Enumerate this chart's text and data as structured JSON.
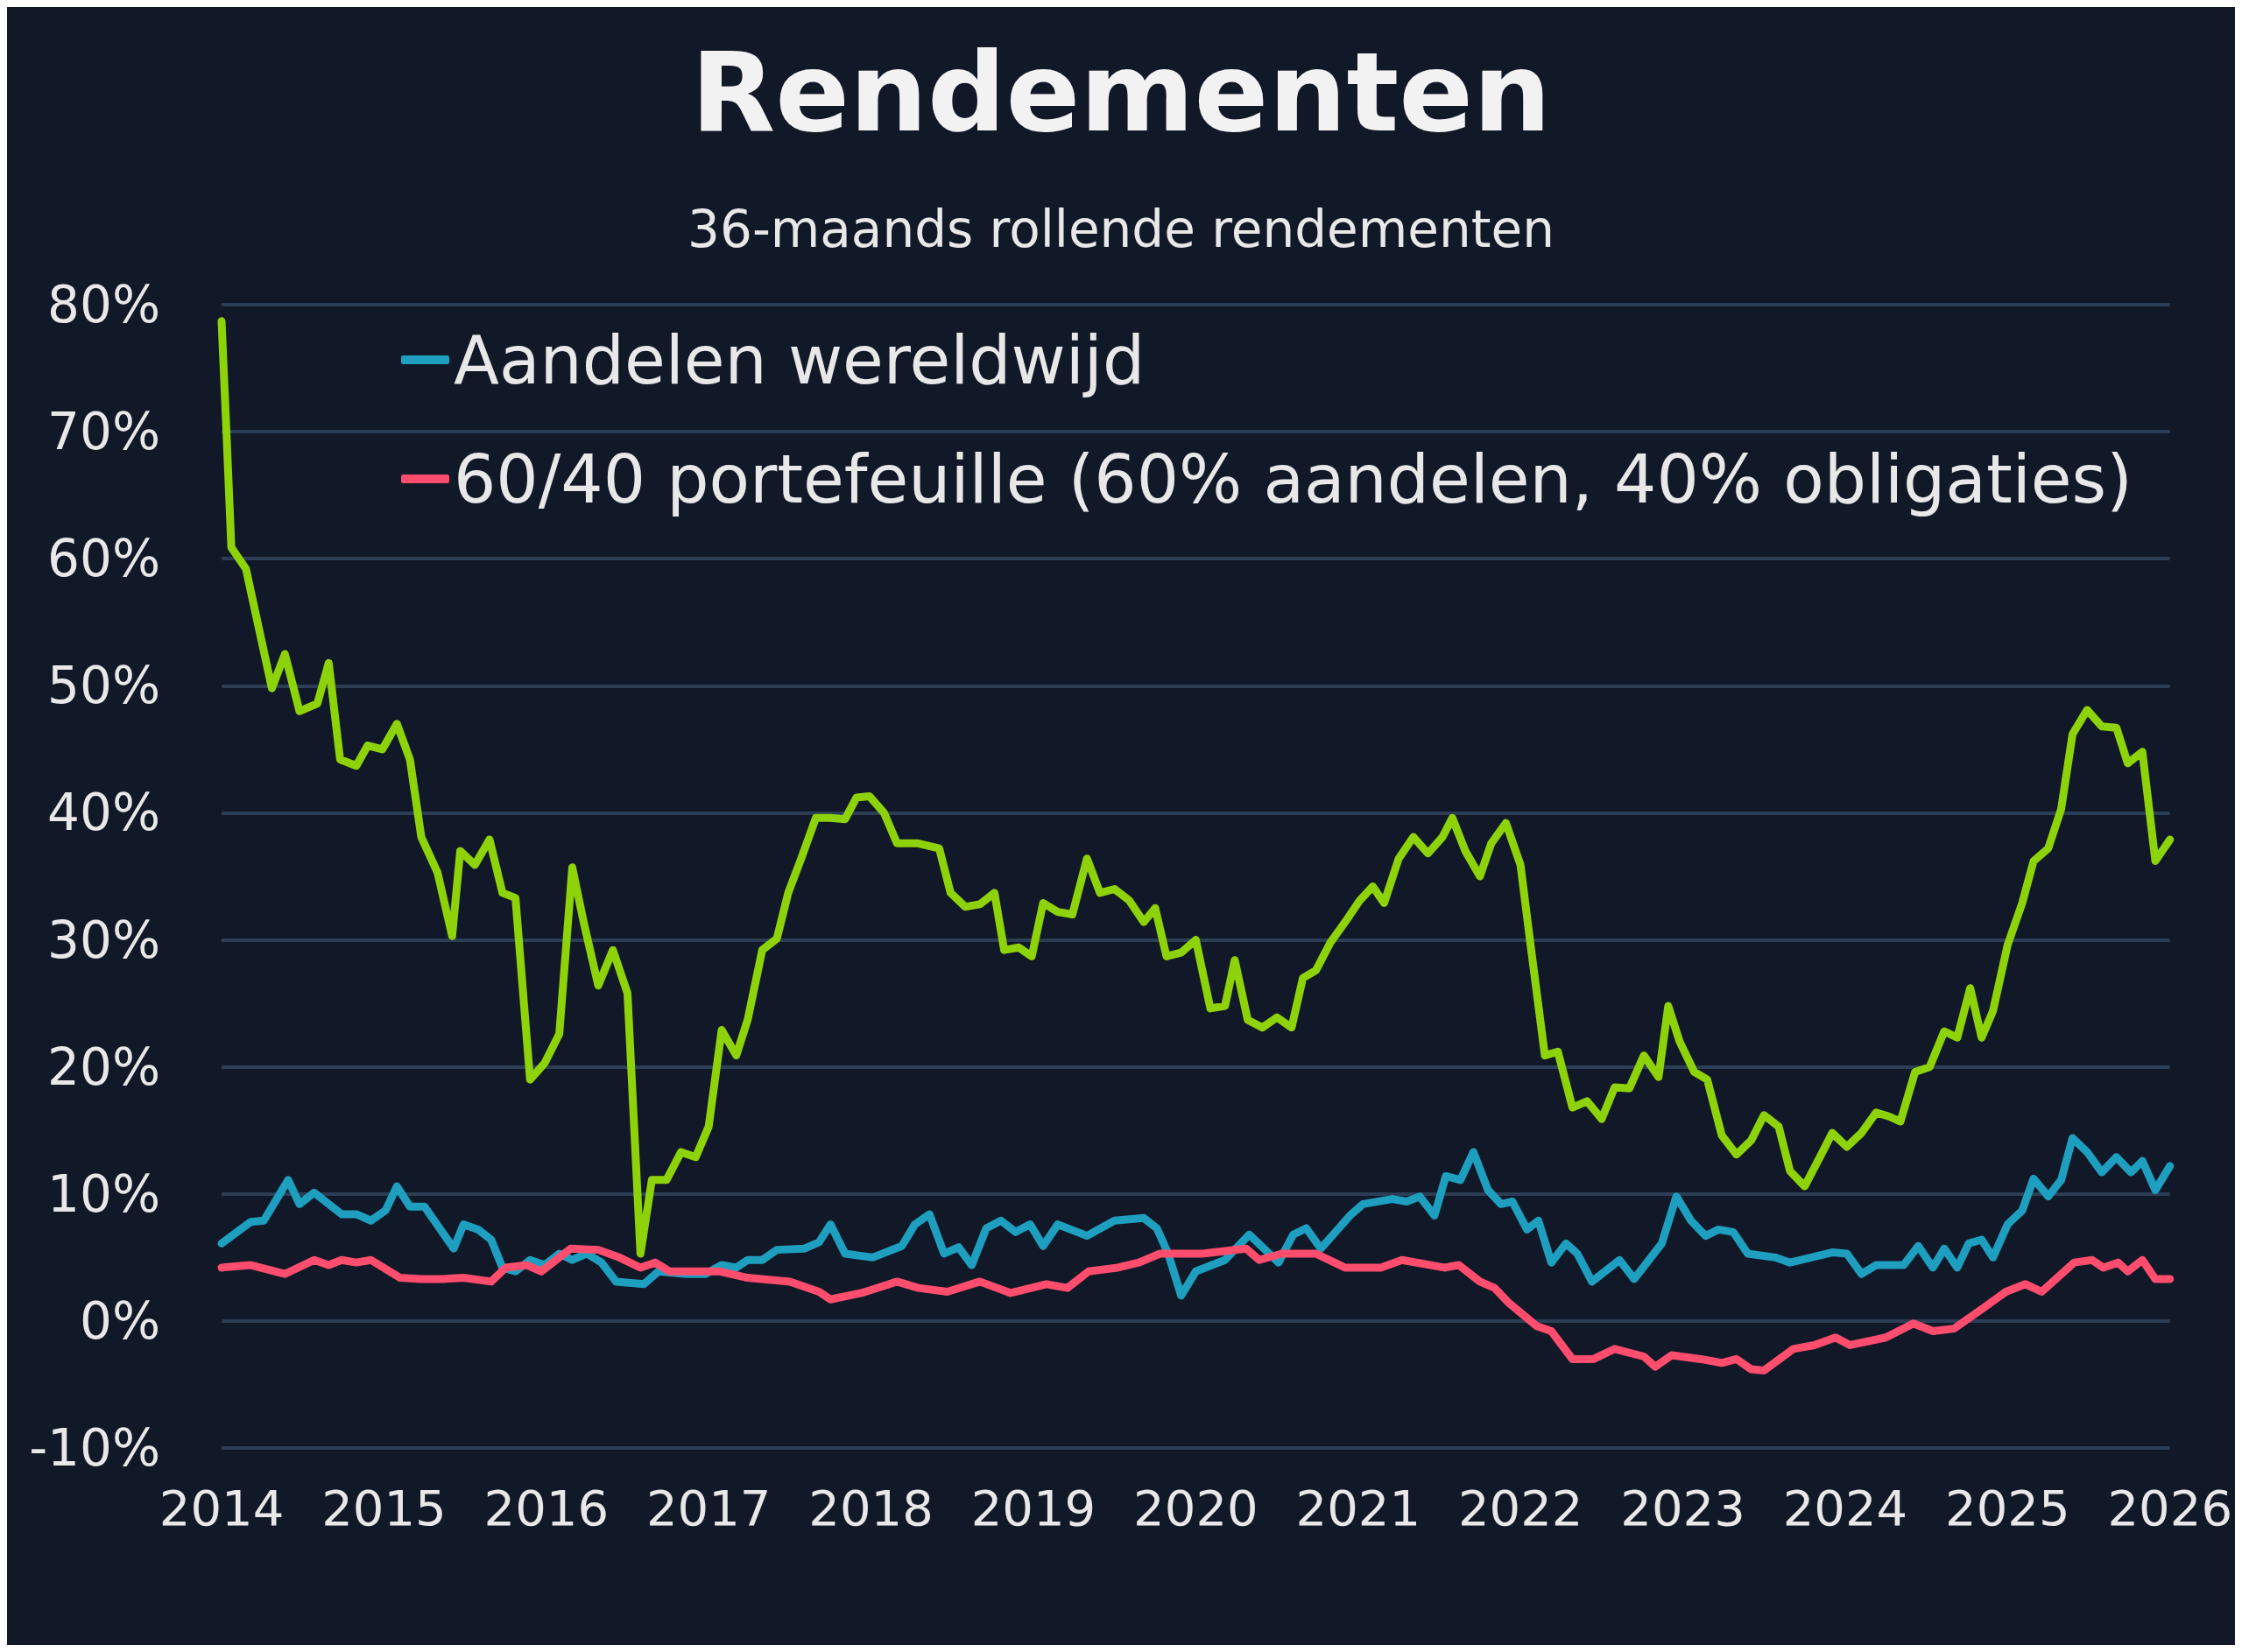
{
  "chart_data": {
    "type": "line",
    "title": "Rendementen",
    "subtitle": "36-maands rollende rendementen",
    "xlim": [
      2014,
      2026
    ],
    "xticks": [
      2014,
      2015,
      2016,
      2017,
      2018,
      2019,
      2020,
      2021,
      2022,
      2023,
      2024,
      2025,
      2026
    ],
    "ylim": [
      -10,
      80
    ],
    "yticks": [
      {
        "value": -10,
        "label": "-10%"
      },
      {
        "value": 0,
        "label": "0%"
      },
      {
        "value": 10,
        "label": "10%"
      },
      {
        "value": 20,
        "label": "20%"
      },
      {
        "value": 30,
        "label": "30%"
      },
      {
        "value": 40,
        "label": "40%"
      },
      {
        "value": 50,
        "label": "50%"
      },
      {
        "value": 60,
        "label": "60%"
      },
      {
        "value": 70,
        "label": "70%"
      },
      {
        "value": 80,
        "label": "80%"
      }
    ],
    "grid": "y",
    "legend": "top left",
    "marker": "none",
    "line_style": "solid",
    "series": [
      {
        "color": "#8ed30a",
        "x": [
          2014,
          2014.03,
          2014.06,
          2014.15,
          2014.31,
          2014.39,
          2014.48,
          2014.59,
          2014.66,
          2014.73,
          2014.83,
          2014.9,
          2014.99,
          2015.08,
          2015.16,
          2015.23,
          2015.33,
          2015.42,
          2015.47,
          2015.56,
          2015.65,
          2015.73,
          2015.81,
          2015.9,
          2015.99,
          2016.08,
          2016.16,
          2016.23,
          2016.32,
          2016.41,
          2016.5,
          2016.58,
          2016.65,
          2016.74,
          2016.83,
          2016.92,
          2017,
          2017.08,
          2017.17,
          2017.24,
          2017.33,
          2017.42,
          2017.49,
          2017.57,
          2017.66,
          2017.75,
          2017.84,
          2017.91,
          2017.99,
          2018.08,
          2018.16,
          2018.29,
          2018.42,
          2018.49,
          2018.58,
          2018.67,
          2018.76,
          2018.82,
          2018.91,
          2018.99,
          2019.06,
          2019.15,
          2019.24,
          2019.33,
          2019.41,
          2019.5,
          2019.59,
          2019.68,
          2019.75,
          2019.82,
          2019.91,
          2020,
          2020.09,
          2020.18,
          2020.24,
          2020.32,
          2020.41,
          2020.5,
          2020.59,
          2020.66,
          2020.74,
          2020.83,
          2020.92,
          2021.01,
          2021.09,
          2021.16,
          2021.25,
          2021.34,
          2021.43,
          2021.52,
          2021.58,
          2021.66,
          2021.75,
          2021.82,
          2021.91,
          2022,
          2022.06,
          2022.15,
          2022.23,
          2022.32,
          2022.41,
          2022.5,
          2022.58,
          2022.67,
          2022.76,
          2022.85,
          2022.91,
          2022.98,
          2023.07,
          2023.15,
          2023.24,
          2023.33,
          2023.42,
          2023.5,
          2023.59,
          2023.66,
          2023.75,
          2023.84,
          2023.92,
          2024.01,
          2024.1,
          2024.19,
          2024.27,
          2024.34,
          2024.43,
          2024.52,
          2024.61,
          2024.69,
          2024.77,
          2024.84,
          2024.91,
          2025,
          2025.09,
          2025.16,
          2025.25,
          2025.33,
          2025.4,
          2025.49,
          2025.58,
          2025.67,
          2025.74,
          2025.83,
          2025.91,
          2026
        ],
        "values": [
          78.7,
          70,
          60.9,
          59.2,
          49.8,
          52.5,
          48,
          48.6,
          51.8,
          44.2,
          43.7,
          45.3,
          45,
          47,
          44.2,
          38.1,
          35.3,
          30.3,
          37,
          35.9,
          37.9,
          33.7,
          33.3,
          19,
          20.3,
          22.6,
          35.7,
          31.4,
          26.4,
          29.2,
          25.8,
          5.3,
          11.1,
          11.1,
          13.3,
          12.9,
          15.3,
          22.9,
          20.9,
          23.7,
          29.2,
          30.1,
          33.7,
          36.4,
          39.6,
          39.6,
          39.5,
          41.2,
          41.3,
          40,
          37.6,
          37.6,
          37.2,
          33.7,
          32.6,
          32.8,
          33.7,
          29.2,
          29.4,
          28.7,
          32.9,
          32.2,
          32,
          36.4,
          33.7,
          34,
          33.1,
          31.4,
          32.5,
          28.7,
          29,
          30,
          24.6,
          24.8,
          28.4,
          23.7,
          23.1,
          23.9,
          23.1,
          27,
          27.6,
          29.8,
          31.4,
          33.1,
          34.2,
          32.9,
          36.4,
          38.1,
          36.8,
          38.1,
          39.6,
          37,
          35,
          37.6,
          39.2,
          35.9,
          29.8,
          20.9,
          21.2,
          16.8,
          17.3,
          15.9,
          18.4,
          18.3,
          20.9,
          19.2,
          24.8,
          22,
          19.6,
          19,
          14.6,
          13.1,
          14.2,
          16.2,
          15.3,
          11.8,
          10.6,
          12.8,
          14.8,
          13.7,
          14.8,
          16.4,
          16.1,
          15.7,
          19.6,
          20,
          22.8,
          22.3,
          26.2,
          22.3,
          24.4,
          29.6,
          32.9,
          36.2,
          37.2,
          40.3,
          46.2,
          48.1,
          46.8,
          46.7,
          43.9,
          44.8,
          36.2,
          37.9
        ]
      },
      {
        "name": "Aandelen wereldwijd",
        "color": "#1e9fc0",
        "x": [
          2014,
          2014.18,
          2014.26,
          2014.41,
          2014.48,
          2014.57,
          2014.74,
          2014.83,
          2014.92,
          2015.01,
          2015.08,
          2015.16,
          2015.25,
          2015.43,
          2015.49,
          2015.58,
          2015.66,
          2015.73,
          2015.81,
          2015.9,
          2015.99,
          2016.08,
          2016.16,
          2016.25,
          2016.34,
          2016.43,
          2016.6,
          2016.69,
          2016.86,
          2016.98,
          2017.08,
          2017.17,
          2017.24,
          2017.33,
          2017.42,
          2017.59,
          2017.68,
          2017.75,
          2017.84,
          2018.01,
          2018.19,
          2018.27,
          2018.36,
          2018.45,
          2018.54,
          2018.62,
          2018.71,
          2018.8,
          2018.89,
          2018.98,
          2019.06,
          2019.15,
          2019.33,
          2019.5,
          2019.68,
          2019.76,
          2019.83,
          2019.91,
          2020,
          2020.18,
          2020.33,
          2020.42,
          2020.51,
          2020.6,
          2020.68,
          2020.77,
          2020.95,
          2021.03,
          2021.21,
          2021.3,
          2021.38,
          2021.47,
          2021.54,
          2021.63,
          2021.71,
          2021.8,
          2021.88,
          2021.95,
          2022.04,
          2022.11,
          2022.19,
          2022.28,
          2022.35,
          2022.44,
          2022.61,
          2022.7,
          2022.87,
          2022.96,
          2023.05,
          2023.14,
          2023.22,
          2023.31,
          2023.4,
          2023.57,
          2023.66,
          2023.92,
          2024.01,
          2024.1,
          2024.19,
          2024.36,
          2024.45,
          2024.54,
          2024.61,
          2024.69,
          2024.76,
          2024.84,
          2024.91,
          2025,
          2025.09,
          2025.16,
          2025.25,
          2025.33,
          2025.4,
          2025.49,
          2025.58,
          2025.67,
          2025.76,
          2025.83,
          2025.91,
          2026
        ],
        "values": [
          6.1,
          7.8,
          7.9,
          11.1,
          9.2,
          10.1,
          8.4,
          8.4,
          7.9,
          8.7,
          10.6,
          9,
          9,
          5.7,
          7.6,
          7.2,
          6.4,
          4.2,
          3.9,
          4.8,
          4.4,
          5.3,
          4.8,
          5.3,
          4.6,
          3.1,
          2.9,
          3.9,
          3.7,
          3.7,
          4.4,
          4.2,
          4.8,
          4.8,
          5.6,
          5.7,
          6.2,
          7.6,
          5.3,
          5,
          5.9,
          7.6,
          8.4,
          5.3,
          5.8,
          4.4,
          7.3,
          7.9,
          7,
          7.6,
          5.9,
          7.6,
          6.7,
          7.9,
          8.1,
          7.3,
          5.3,
          2,
          3.9,
          4.8,
          6.8,
          5.7,
          4.6,
          6.8,
          7.3,
          5.7,
          8.3,
          9.2,
          9.6,
          9.4,
          9.8,
          8.3,
          11.4,
          11.1,
          13.3,
          10.3,
          9.2,
          9.4,
          7.2,
          7.9,
          4.6,
          6.1,
          5.3,
          3.1,
          4.8,
          3.3,
          6.1,
          9.8,
          7.9,
          6.7,
          7.2,
          7,
          5.3,
          5,
          4.6,
          5.4,
          5.3,
          3.7,
          4.4,
          4.4,
          5.9,
          4.2,
          5.7,
          4.2,
          6.1,
          6.4,
          5,
          7.6,
          8.7,
          11.2,
          9.8,
          11.1,
          14.4,
          13.3,
          11.7,
          12.9,
          11.7,
          12.6,
          10.3,
          12.2
        ]
      },
      {
        "name": "60/40 portefeuille (60% aandelen, 40% obligaties)",
        "color": "#ff4d6d",
        "x": [
          2014,
          2014.18,
          2014.39,
          2014.57,
          2014.66,
          2014.74,
          2014.83,
          2014.92,
          2015.1,
          2015.23,
          2015.36,
          2015.49,
          2015.66,
          2015.75,
          2015.88,
          2015.97,
          2016.15,
          2016.32,
          2016.45,
          2016.58,
          2016.67,
          2016.76,
          2017.07,
          2017.24,
          2017.5,
          2017.68,
          2017.75,
          2017.94,
          2018.16,
          2018.29,
          2018.47,
          2018.67,
          2018.86,
          2019.08,
          2019.21,
          2019.34,
          2019.52,
          2019.65,
          2019.78,
          2020.04,
          2020.31,
          2020.39,
          2020.53,
          2020.74,
          2020.92,
          2021.14,
          2021.27,
          2021.53,
          2021.62,
          2021.75,
          2021.84,
          2021.93,
          2022.1,
          2022.19,
          2022.32,
          2022.45,
          2022.58,
          2022.76,
          2022.83,
          2022.93,
          2023.11,
          2023.24,
          2023.33,
          2023.42,
          2023.5,
          2023.68,
          2023.81,
          2023.94,
          2024.03,
          2024.25,
          2024.42,
          2024.54,
          2024.67,
          2024.86,
          2024.99,
          2025.11,
          2025.21,
          2025.41,
          2025.52,
          2025.59,
          2025.68,
          2025.74,
          2025.83,
          2025.91,
          2026
        ],
        "values": [
          4.2,
          4.4,
          3.7,
          4.8,
          4.4,
          4.8,
          4.6,
          4.8,
          3.4,
          3.3,
          3.3,
          3.4,
          3.1,
          4.2,
          4.4,
          3.9,
          5.7,
          5.6,
          5,
          4.2,
          4.6,
          3.9,
          3.9,
          3.4,
          3.1,
          2.3,
          1.7,
          2.2,
          3.1,
          2.6,
          2.3,
          3.1,
          2.2,
          2.9,
          2.6,
          3.9,
          4.2,
          4.6,
          5.3,
          5.3,
          5.7,
          4.8,
          5.3,
          5.3,
          4.2,
          4.2,
          4.8,
          4.2,
          4.4,
          3.1,
          2.6,
          1.4,
          -0.4,
          -0.8,
          -3,
          -3,
          -2.2,
          -2.8,
          -3.6,
          -2.7,
          -3,
          -3.3,
          -3,
          -3.8,
          -3.9,
          -2.2,
          -1.9,
          -1.3,
          -1.9,
          -1.3,
          -0.2,
          -0.8,
          -0.6,
          1.1,
          2.3,
          2.9,
          2.3,
          4.6,
          4.8,
          4.2,
          4.6,
          3.9,
          4.8,
          3.3,
          3.3
        ]
      }
    ]
  }
}
